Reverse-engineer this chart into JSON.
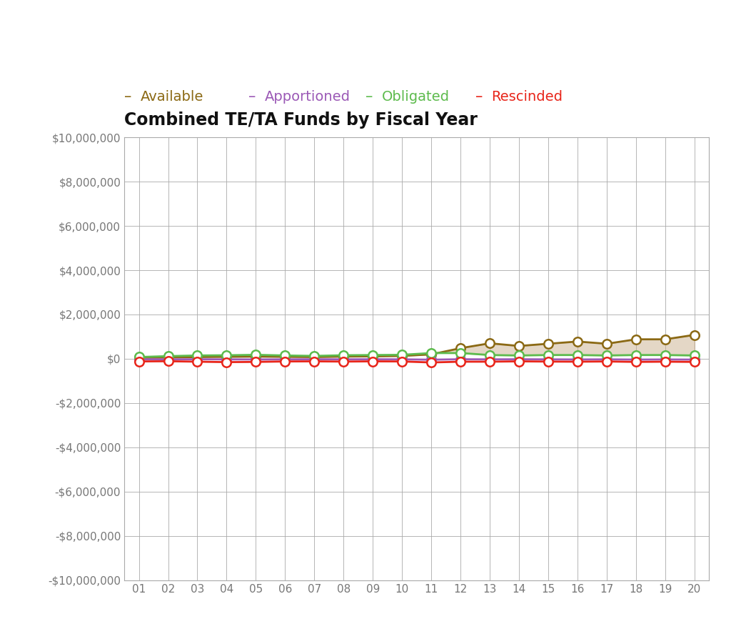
{
  "title": "Combined TE/TA Funds by Fiscal Year",
  "background_color": "#ffffff",
  "plot_bg_color": "#ffffff",
  "years": [
    1,
    2,
    3,
    4,
    5,
    6,
    7,
    8,
    9,
    10,
    11,
    12,
    13,
    14,
    15,
    16,
    17,
    18,
    19,
    20
  ],
  "year_labels": [
    "01",
    "02",
    "03",
    "04",
    "05",
    "06",
    "07",
    "08",
    "09",
    "10",
    "11",
    "12",
    "13",
    "14",
    "15",
    "16",
    "17",
    "18",
    "19",
    "20"
  ],
  "available": [
    50000,
    60000,
    80000,
    90000,
    100000,
    90000,
    80000,
    100000,
    110000,
    130000,
    200000,
    480000,
    700000,
    580000,
    680000,
    780000,
    680000,
    880000,
    880000,
    1080000
  ],
  "apportioned": [
    -20000,
    -25000,
    -20000,
    -25000,
    -30000,
    -25000,
    -20000,
    -25000,
    -20000,
    -25000,
    -40000,
    -20000,
    -25000,
    -20000,
    -25000,
    -30000,
    -25000,
    -35000,
    -30000,
    -35000
  ],
  "obligated": [
    80000,
    120000,
    150000,
    160000,
    180000,
    150000,
    130000,
    160000,
    170000,
    180000,
    260000,
    260000,
    170000,
    150000,
    170000,
    170000,
    150000,
    170000,
    170000,
    150000
  ],
  "rescinded": [
    -120000,
    -110000,
    -130000,
    -150000,
    -140000,
    -120000,
    -115000,
    -125000,
    -115000,
    -120000,
    -165000,
    -130000,
    -130000,
    -115000,
    -125000,
    -130000,
    -120000,
    -140000,
    -130000,
    -140000
  ],
  "color_available": "#8B6914",
  "color_apportioned": "#9B59B6",
  "color_obligated": "#5DBB4D",
  "color_rescinded": "#E8251A",
  "fill_color": "#C4A882",
  "fill_alpha": 0.45,
  "ylim": [
    -10000000,
    10000000
  ],
  "ytick_step": 2000000,
  "legend_entries": [
    "Available",
    "Apportioned",
    "Obligated",
    "Rescinded"
  ],
  "legend_colors": [
    "#8B6914",
    "#9B59B6",
    "#5DBB4D",
    "#E8251A"
  ]
}
